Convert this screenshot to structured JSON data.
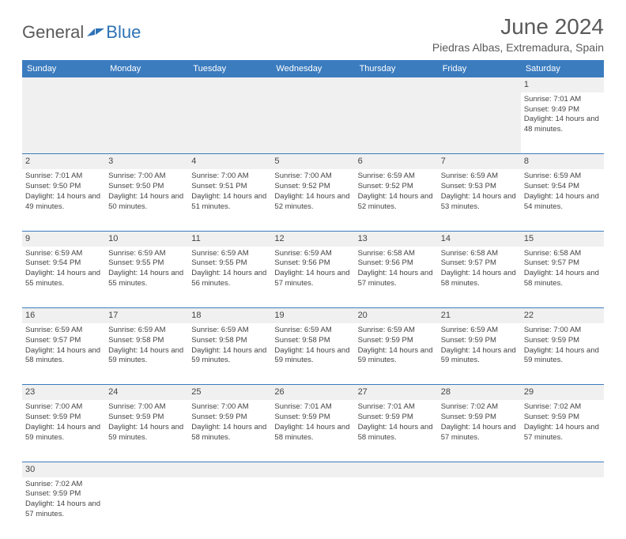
{
  "logo": {
    "dark": "General",
    "blue": "Blue"
  },
  "title": "June 2024",
  "location": "Piedras Albas, Extremadura, Spain",
  "colors": {
    "header_bg": "#3b7cbf",
    "header_text": "#ffffff",
    "daynum_bg": "#f0f0f0",
    "cell_border": "#3b7cbf",
    "text": "#444444",
    "title_text": "#5a5a5a",
    "logo_blue": "#2d72b5"
  },
  "day_headers": [
    "Sunday",
    "Monday",
    "Tuesday",
    "Wednesday",
    "Thursday",
    "Friday",
    "Saturday"
  ],
  "weeks": [
    [
      null,
      null,
      null,
      null,
      null,
      null,
      {
        "n": "1",
        "sr": "7:01 AM",
        "ss": "9:49 PM",
        "dl": "14 hours and 48 minutes."
      }
    ],
    [
      {
        "n": "2",
        "sr": "7:01 AM",
        "ss": "9:50 PM",
        "dl": "14 hours and 49 minutes."
      },
      {
        "n": "3",
        "sr": "7:00 AM",
        "ss": "9:50 PM",
        "dl": "14 hours and 50 minutes."
      },
      {
        "n": "4",
        "sr": "7:00 AM",
        "ss": "9:51 PM",
        "dl": "14 hours and 51 minutes."
      },
      {
        "n": "5",
        "sr": "7:00 AM",
        "ss": "9:52 PM",
        "dl": "14 hours and 52 minutes."
      },
      {
        "n": "6",
        "sr": "6:59 AM",
        "ss": "9:52 PM",
        "dl": "14 hours and 52 minutes."
      },
      {
        "n": "7",
        "sr": "6:59 AM",
        "ss": "9:53 PM",
        "dl": "14 hours and 53 minutes."
      },
      {
        "n": "8",
        "sr": "6:59 AM",
        "ss": "9:54 PM",
        "dl": "14 hours and 54 minutes."
      }
    ],
    [
      {
        "n": "9",
        "sr": "6:59 AM",
        "ss": "9:54 PM",
        "dl": "14 hours and 55 minutes."
      },
      {
        "n": "10",
        "sr": "6:59 AM",
        "ss": "9:55 PM",
        "dl": "14 hours and 55 minutes."
      },
      {
        "n": "11",
        "sr": "6:59 AM",
        "ss": "9:55 PM",
        "dl": "14 hours and 56 minutes."
      },
      {
        "n": "12",
        "sr": "6:59 AM",
        "ss": "9:56 PM",
        "dl": "14 hours and 57 minutes."
      },
      {
        "n": "13",
        "sr": "6:58 AM",
        "ss": "9:56 PM",
        "dl": "14 hours and 57 minutes."
      },
      {
        "n": "14",
        "sr": "6:58 AM",
        "ss": "9:57 PM",
        "dl": "14 hours and 58 minutes."
      },
      {
        "n": "15",
        "sr": "6:58 AM",
        "ss": "9:57 PM",
        "dl": "14 hours and 58 minutes."
      }
    ],
    [
      {
        "n": "16",
        "sr": "6:59 AM",
        "ss": "9:57 PM",
        "dl": "14 hours and 58 minutes."
      },
      {
        "n": "17",
        "sr": "6:59 AM",
        "ss": "9:58 PM",
        "dl": "14 hours and 59 minutes."
      },
      {
        "n": "18",
        "sr": "6:59 AM",
        "ss": "9:58 PM",
        "dl": "14 hours and 59 minutes."
      },
      {
        "n": "19",
        "sr": "6:59 AM",
        "ss": "9:58 PM",
        "dl": "14 hours and 59 minutes."
      },
      {
        "n": "20",
        "sr": "6:59 AM",
        "ss": "9:59 PM",
        "dl": "14 hours and 59 minutes."
      },
      {
        "n": "21",
        "sr": "6:59 AM",
        "ss": "9:59 PM",
        "dl": "14 hours and 59 minutes."
      },
      {
        "n": "22",
        "sr": "7:00 AM",
        "ss": "9:59 PM",
        "dl": "14 hours and 59 minutes."
      }
    ],
    [
      {
        "n": "23",
        "sr": "7:00 AM",
        "ss": "9:59 PM",
        "dl": "14 hours and 59 minutes."
      },
      {
        "n": "24",
        "sr": "7:00 AM",
        "ss": "9:59 PM",
        "dl": "14 hours and 59 minutes."
      },
      {
        "n": "25",
        "sr": "7:00 AM",
        "ss": "9:59 PM",
        "dl": "14 hours and 58 minutes."
      },
      {
        "n": "26",
        "sr": "7:01 AM",
        "ss": "9:59 PM",
        "dl": "14 hours and 58 minutes."
      },
      {
        "n": "27",
        "sr": "7:01 AM",
        "ss": "9:59 PM",
        "dl": "14 hours and 58 minutes."
      },
      {
        "n": "28",
        "sr": "7:02 AM",
        "ss": "9:59 PM",
        "dl": "14 hours and 57 minutes."
      },
      {
        "n": "29",
        "sr": "7:02 AM",
        "ss": "9:59 PM",
        "dl": "14 hours and 57 minutes."
      }
    ],
    [
      {
        "n": "30",
        "sr": "7:02 AM",
        "ss": "9:59 PM",
        "dl": "14 hours and 57 minutes."
      },
      null,
      null,
      null,
      null,
      null,
      null
    ]
  ],
  "labels": {
    "sunrise": "Sunrise:",
    "sunset": "Sunset:",
    "daylight": "Daylight:"
  }
}
